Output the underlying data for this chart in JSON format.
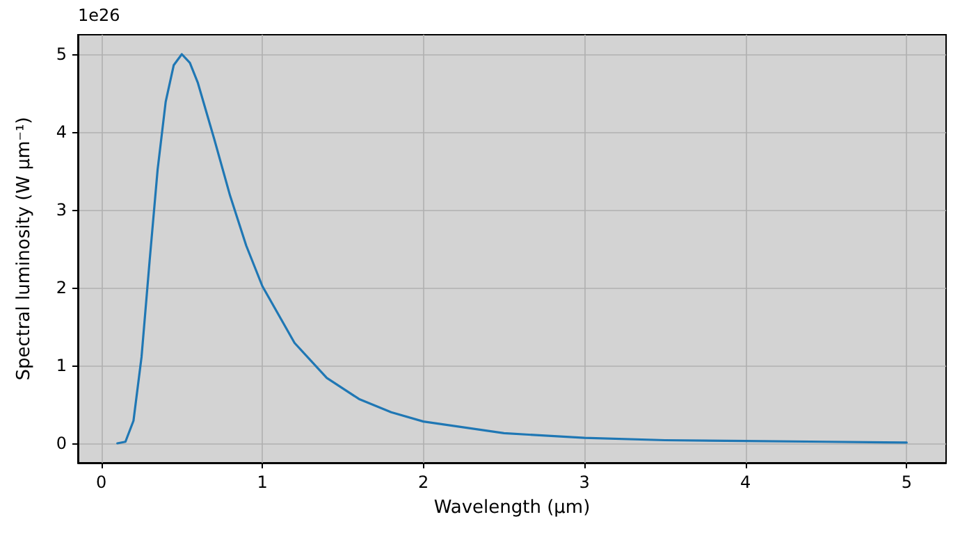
{
  "chart_data": {
    "type": "line",
    "xlabel": "Wavelength (μm)",
    "ylabel": "Spectral luminosity (W μm⁻¹)",
    "annotations": [
      "1e26"
    ],
    "x": [
      0.1,
      0.15,
      0.2,
      0.25,
      0.3,
      0.35,
      0.4,
      0.45,
      0.5,
      0.55,
      0.6,
      0.7,
      0.8,
      0.9,
      1.0,
      1.2,
      1.4,
      1.6,
      1.8,
      2.0,
      2.5,
      3.0,
      3.5,
      4.0,
      4.5,
      5.0
    ],
    "series": [
      {
        "color": "#1f77b4",
        "values": [
          0.0,
          0.02,
          0.29,
          1.11,
          2.34,
          3.52,
          4.39,
          4.86,
          5.0,
          4.89,
          4.63,
          3.92,
          3.18,
          2.54,
          2.02,
          1.29,
          0.84,
          0.57,
          0.4,
          0.28,
          0.13,
          0.07,
          0.04,
          0.03,
          0.02,
          0.01
        ]
      }
    ],
    "xlim": [
      -0.145,
      5.245
    ],
    "ylim": [
      -0.25,
      5.25
    ],
    "xticks": [
      0,
      1,
      2,
      3,
      4,
      5
    ],
    "yticks": [
      0,
      1,
      2,
      3,
      4,
      5
    ],
    "grid": true,
    "marker": "none",
    "line_style": "solid"
  }
}
